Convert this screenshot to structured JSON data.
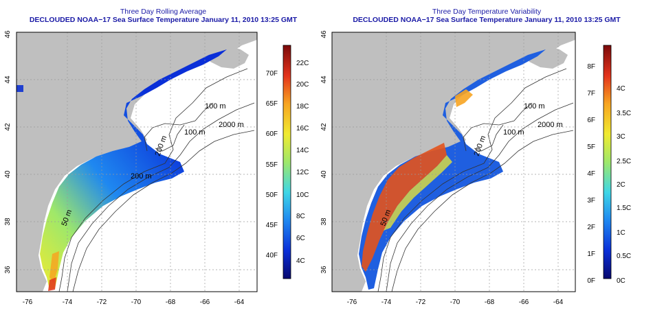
{
  "colors": {
    "land": "#bfbfbf",
    "water": "#ffffff",
    "frame": "#000000",
    "title": "#1a1aa6",
    "grid": "#9a9a9a",
    "contour": "#333333",
    "colorbar_stops": [
      "#08086e",
      "#0a2fd8",
      "#1f88f0",
      "#3fd6e6",
      "#9fe86a",
      "#f0ea30",
      "#f7a421",
      "#e3331c",
      "#7a0a0a"
    ]
  },
  "map_axes": {
    "x_ticks": [
      "-76",
      "-74",
      "-72",
      "-70",
      "-68",
      "-66",
      "-64"
    ],
    "y_ticks": [
      "36",
      "38",
      "40",
      "42",
      "44",
      "46"
    ],
    "contour_labels": [
      "100 m",
      "2000 m",
      "100 m",
      "200 m",
      "200 m",
      "50 m"
    ]
  },
  "panels": [
    {
      "title": "Three Day Rolling Average",
      "subtitle": "DECLOUDED NOAA−17 Sea Surface Temperature January 11, 2010 13:25 GMT",
      "colorbar": {
        "fahrenheit": [
          "40F",
          "45F",
          "50F",
          "55F",
          "60F",
          "65F",
          "70F"
        ],
        "celsius": [
          "4C",
          "6C",
          "8C",
          "10C",
          "12C",
          "14C",
          "16C",
          "18C",
          "20C",
          "22C"
        ]
      }
    },
    {
      "title": "Three Day Temperature Variability",
      "subtitle": "DECLOUDED NOAA−17 Sea Surface Temperature January 11, 2010 13:25 GMT",
      "colorbar": {
        "fahrenheit": [
          "0F",
          "1F",
          "2F",
          "3F",
          "4F",
          "5F",
          "6F",
          "7F",
          "8F"
        ],
        "celsius": [
          "0C",
          "0.5C",
          "1C",
          "1.5C",
          "2C",
          "2.5C",
          "3C",
          "3.5C",
          "4C"
        ]
      }
    }
  ]
}
